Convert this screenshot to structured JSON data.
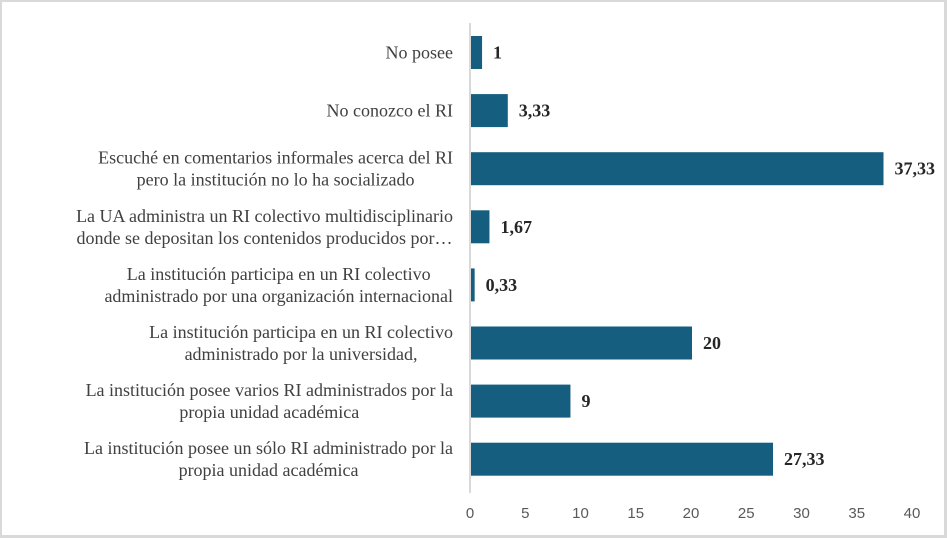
{
  "chart_data": {
    "type": "bar",
    "orientation": "horizontal",
    "title": "",
    "xlabel": "",
    "ylabel": "",
    "xlim": [
      0,
      40
    ],
    "x_ticks": [
      0,
      5,
      10,
      15,
      20,
      25,
      30,
      35,
      40
    ],
    "x_tick_labels": [
      "0",
      "5",
      "10",
      "15",
      "20",
      "25",
      "30",
      "35",
      "40"
    ],
    "grid": false,
    "legend": "none",
    "bar_color": "#165e80",
    "categories": [
      [
        "No posee"
      ],
      [
        "No conozco el RI"
      ],
      [
        "Escuché en comentarios informales acerca del RI",
        "pero la institución no lo ha socializado"
      ],
      [
        "La UA administra un RI colectivo multidisciplinario",
        "donde se depositan los contenidos producidos por…"
      ],
      [
        "La institución participa en un RI colectivo",
        "administrado por una organización internacional"
      ],
      [
        "La institución participa en un RI colectivo",
        "administrado por la universidad,"
      ],
      [
        "La institución posee varios RI administrados por la",
        "propia unidad académica"
      ],
      [
        "La institución posee un sólo RI administrado por la",
        "propia unidad académica"
      ]
    ],
    "values": [
      1,
      3.33,
      37.33,
      1.67,
      0.33,
      20,
      9,
      27.33
    ],
    "value_labels": [
      "1",
      "3,33",
      "37,33",
      "1,67",
      "0,33",
      "20",
      "9",
      "27,33"
    ]
  }
}
